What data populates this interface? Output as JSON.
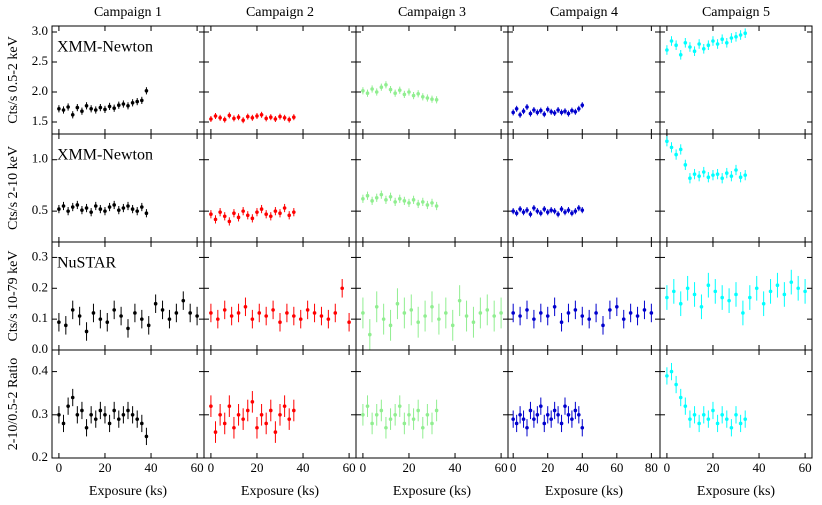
{
  "chart_data": [
    {
      "type": "scatter",
      "title": "Campaign 1",
      "ylabel": "Cts/s 0.5-2 keV",
      "annotation": "XMM-Newton",
      "color": "#000000",
      "error": 0.06,
      "x": [
        0,
        2,
        4,
        6,
        8,
        10,
        12,
        14,
        16,
        18,
        20,
        22,
        24,
        26,
        28,
        30,
        32,
        34,
        36,
        38
      ],
      "values": [
        1.72,
        1.7,
        1.75,
        1.62,
        1.74,
        1.68,
        1.77,
        1.72,
        1.7,
        1.74,
        1.71,
        1.76,
        1.73,
        1.78,
        1.8,
        1.77,
        1.82,
        1.84,
        1.86,
        2.02
      ],
      "xlim": [
        -3,
        63
      ],
      "ylim": [
        1.3,
        3.1
      ],
      "xticks": [
        0,
        20,
        40,
        60
      ],
      "yticks": [
        1.5,
        {
          "value": 2.0,
          "label": "2.0"
        },
        2.5,
        {
          "value": 3.0,
          "label": "3.0"
        }
      ]
    },
    {
      "type": "scatter",
      "title": "Campaign 2",
      "color": "#ff0000",
      "error": 0.05,
      "x": [
        0,
        2,
        4,
        6,
        8,
        10,
        12,
        14,
        16,
        18,
        20,
        22,
        24,
        26,
        28,
        30,
        32,
        34,
        36
      ],
      "values": [
        1.55,
        1.6,
        1.57,
        1.54,
        1.61,
        1.56,
        1.58,
        1.53,
        1.59,
        1.57,
        1.6,
        1.62,
        1.56,
        1.58,
        1.55,
        1.59,
        1.57,
        1.54,
        1.58
      ],
      "xlim": [
        -3,
        63
      ],
      "ylim": [
        1.3,
        3.1
      ],
      "xticks": [
        0,
        20,
        40,
        60
      ],
      "yticks": [
        1.5,
        2.0,
        2.5,
        3.0
      ]
    },
    {
      "type": "scatter",
      "title": "Campaign 3",
      "color": "#90ee90",
      "error": 0.06,
      "x": [
        0,
        2,
        4,
        6,
        8,
        10,
        12,
        14,
        16,
        18,
        20,
        22,
        24,
        26,
        28,
        30,
        32
      ],
      "values": [
        2.02,
        1.98,
        2.05,
        2.0,
        2.08,
        2.12,
        2.04,
        1.98,
        2.03,
        1.96,
        2.0,
        1.94,
        1.97,
        1.92,
        1.9,
        1.88,
        1.87
      ],
      "xlim": [
        -3,
        63
      ],
      "ylim": [
        1.3,
        3.1
      ],
      "xticks": [
        0,
        20,
        40,
        60
      ],
      "yticks": [
        1.5,
        2.0,
        2.5,
        3.0
      ]
    },
    {
      "type": "scatter",
      "title": "Campaign 4",
      "color": "#0000cd",
      "error": 0.05,
      "x": [
        0,
        2,
        4,
        6,
        8,
        10,
        12,
        14,
        16,
        18,
        20,
        22,
        24,
        26,
        28,
        30,
        32,
        34,
        36,
        38,
        40
      ],
      "values": [
        1.66,
        1.72,
        1.62,
        1.68,
        1.75,
        1.64,
        1.7,
        1.66,
        1.69,
        1.63,
        1.71,
        1.67,
        1.65,
        1.7,
        1.66,
        1.68,
        1.64,
        1.69,
        1.67,
        1.72,
        1.78
      ],
      "xlim": [
        -3,
        85
      ],
      "ylim": [
        1.3,
        3.1
      ],
      "xticks": [
        0,
        20,
        40,
        60,
        80
      ],
      "yticks": [
        1.5,
        2.0,
        2.5,
        3.0
      ]
    },
    {
      "type": "scatter",
      "title": "Campaign 5",
      "color": "#00ffff",
      "error": 0.08,
      "x": [
        0,
        2,
        4,
        6,
        8,
        10,
        12,
        14,
        16,
        18,
        20,
        22,
        24,
        26,
        28,
        30,
        32,
        34
      ],
      "values": [
        2.7,
        2.85,
        2.78,
        2.62,
        2.82,
        2.75,
        2.68,
        2.8,
        2.72,
        2.78,
        2.85,
        2.8,
        2.88,
        2.82,
        2.9,
        2.92,
        2.95,
        2.98
      ],
      "xlim": [
        -3,
        63
      ],
      "ylim": [
        1.3,
        3.1
      ],
      "xticks": [
        0,
        20,
        40,
        60
      ],
      "yticks": [
        1.5,
        2.0,
        2.5,
        3.0
      ]
    },
    {
      "type": "scatter",
      "ylabel": "Cts/s 2-10 keV",
      "annotation": "XMM-Newton",
      "color": "#000000",
      "error": 0.04,
      "x": [
        0,
        2,
        4,
        6,
        8,
        10,
        12,
        14,
        16,
        18,
        20,
        22,
        24,
        26,
        28,
        30,
        32,
        34,
        36,
        38
      ],
      "values": [
        0.52,
        0.55,
        0.5,
        0.54,
        0.56,
        0.51,
        0.53,
        0.49,
        0.55,
        0.52,
        0.5,
        0.54,
        0.56,
        0.51,
        0.53,
        0.55,
        0.52,
        0.5,
        0.54,
        0.48
      ],
      "xlim": [
        -3,
        63
      ],
      "ylim": [
        0.2,
        1.25
      ],
      "xticks": [
        0,
        20,
        40,
        60
      ],
      "yticks": [
        0.5,
        {
          "value": 1,
          "label": "1.0"
        }
      ]
    },
    {
      "type": "scatter",
      "color": "#ff0000",
      "error": 0.04,
      "x": [
        0,
        2,
        4,
        6,
        8,
        10,
        12,
        14,
        16,
        18,
        20,
        22,
        24,
        26,
        28,
        30,
        32,
        34,
        36
      ],
      "values": [
        0.47,
        0.42,
        0.49,
        0.45,
        0.4,
        0.48,
        0.44,
        0.5,
        0.46,
        0.43,
        0.49,
        0.52,
        0.47,
        0.45,
        0.5,
        0.48,
        0.53,
        0.46,
        0.49
      ],
      "xlim": [
        -3,
        63
      ],
      "ylim": [
        0.2,
        1.25
      ],
      "xticks": [
        0,
        20,
        40,
        60
      ],
      "yticks": [
        0.5,
        1
      ]
    },
    {
      "type": "scatter",
      "color": "#90ee90",
      "error": 0.04,
      "x": [
        0,
        2,
        4,
        6,
        8,
        10,
        12,
        14,
        16,
        18,
        20,
        22,
        24,
        26,
        28,
        30,
        32
      ],
      "values": [
        0.62,
        0.65,
        0.6,
        0.63,
        0.66,
        0.61,
        0.64,
        0.59,
        0.62,
        0.6,
        0.58,
        0.61,
        0.57,
        0.59,
        0.56,
        0.58,
        0.55
      ],
      "xlim": [
        -3,
        63
      ],
      "ylim": [
        0.2,
        1.25
      ],
      "xticks": [
        0,
        20,
        40,
        60
      ],
      "yticks": [
        0.5,
        1
      ]
    },
    {
      "type": "scatter",
      "color": "#0000cd",
      "error": 0.03,
      "x": [
        0,
        2,
        4,
        6,
        8,
        10,
        12,
        14,
        16,
        18,
        20,
        22,
        24,
        26,
        28,
        30,
        32,
        34,
        36,
        38,
        40
      ],
      "values": [
        0.5,
        0.48,
        0.52,
        0.49,
        0.51,
        0.47,
        0.53,
        0.5,
        0.48,
        0.52,
        0.49,
        0.51,
        0.5,
        0.47,
        0.52,
        0.49,
        0.51,
        0.48,
        0.5,
        0.53,
        0.51
      ],
      "xlim": [
        -3,
        85
      ],
      "ylim": [
        0.2,
        1.25
      ],
      "xticks": [
        0,
        20,
        40,
        60,
        80
      ],
      "yticks": [
        0.5,
        1
      ]
    },
    {
      "type": "scatter",
      "color": "#00ffff",
      "error": 0.05,
      "x": [
        0,
        2,
        4,
        6,
        8,
        10,
        12,
        14,
        16,
        18,
        20,
        22,
        24,
        26,
        28,
        30,
        32,
        34
      ],
      "values": [
        1.18,
        1.12,
        1.05,
        1.1,
        0.95,
        0.82,
        0.86,
        0.84,
        0.88,
        0.83,
        0.85,
        0.86,
        0.82,
        0.87,
        0.84,
        0.9,
        0.83,
        0.85
      ],
      "xlim": [
        -3,
        63
      ],
      "ylim": [
        0.2,
        1.25
      ],
      "xticks": [
        0,
        20,
        40,
        60
      ],
      "yticks": [
        0.5,
        1
      ]
    },
    {
      "type": "scatter",
      "ylabel": "Cts/s 10-79 keV",
      "annotation": "NuSTAR",
      "color": "#000000",
      "error": 0.03,
      "x": [
        0,
        3,
        6,
        9,
        12,
        15,
        18,
        21,
        24,
        27,
        30,
        33,
        36,
        39,
        42,
        45,
        48,
        51,
        54,
        57,
        60
      ],
      "values": [
        0.09,
        0.08,
        0.13,
        0.11,
        0.06,
        0.12,
        0.1,
        0.09,
        0.13,
        0.11,
        0.07,
        0.12,
        0.1,
        0.08,
        0.15,
        0.13,
        0.1,
        0.12,
        0.16,
        0.12,
        0.11
      ],
      "xlim": [
        -3,
        63
      ],
      "ylim": [
        0,
        0.35
      ],
      "xticks": [
        0,
        20,
        40,
        60
      ],
      "yticks": [
        {
          "value": 0,
          "label": "0.0"
        },
        0.1,
        0.2,
        0.3
      ]
    },
    {
      "type": "scatter",
      "color": "#ff0000",
      "error": 0.03,
      "x": [
        0,
        3,
        6,
        9,
        12,
        15,
        18,
        21,
        24,
        27,
        30,
        33,
        36,
        39,
        42,
        45,
        48,
        51,
        54,
        57,
        60
      ],
      "values": [
        0.12,
        0.1,
        0.13,
        0.11,
        0.12,
        0.14,
        0.1,
        0.12,
        0.11,
        0.13,
        0.09,
        0.12,
        0.11,
        0.1,
        0.13,
        0.12,
        0.11,
        0.1,
        0.12,
        0.2,
        0.09
      ],
      "xlim": [
        -3,
        63
      ],
      "ylim": [
        0,
        0.35
      ],
      "xticks": [
        0,
        20,
        40,
        60
      ],
      "yticks": [
        0,
        0.1,
        0.2,
        0.3
      ]
    },
    {
      "type": "scatter",
      "color": "#90ee90",
      "error": 0.05,
      "x": [
        0,
        3,
        6,
        9,
        12,
        15,
        18,
        21,
        24,
        27,
        30,
        33,
        36,
        39,
        42,
        45,
        48,
        51,
        54,
        57,
        60
      ],
      "values": [
        0.12,
        0.05,
        0.14,
        0.1,
        0.08,
        0.15,
        0.12,
        0.13,
        0.09,
        0.11,
        0.14,
        0.1,
        0.12,
        0.08,
        0.16,
        0.11,
        0.09,
        0.12,
        0.13,
        0.11,
        0.12
      ],
      "xlim": [
        -3,
        63
      ],
      "ylim": [
        0,
        0.35
      ],
      "xticks": [
        0,
        20,
        40,
        60
      ],
      "yticks": [
        0,
        0.1,
        0.2,
        0.3
      ]
    },
    {
      "type": "scatter",
      "color": "#0000cd",
      "error": 0.03,
      "x": [
        0,
        4,
        8,
        12,
        16,
        20,
        24,
        28,
        32,
        36,
        40,
        44,
        48,
        52,
        56,
        60,
        64,
        68,
        72,
        76,
        80
      ],
      "values": [
        0.12,
        0.11,
        0.13,
        0.1,
        0.12,
        0.11,
        0.14,
        0.09,
        0.12,
        0.13,
        0.11,
        0.1,
        0.12,
        0.08,
        0.13,
        0.14,
        0.1,
        0.12,
        0.11,
        0.13,
        0.12
      ],
      "xlim": [
        -3,
        85
      ],
      "ylim": [
        0,
        0.35
      ],
      "xticks": [
        0,
        20,
        40,
        60,
        80
      ],
      "yticks": [
        0,
        0.1,
        0.2,
        0.3
      ]
    },
    {
      "type": "scatter",
      "color": "#00ffff",
      "error": 0.04,
      "x": [
        0,
        3,
        6,
        9,
        12,
        15,
        18,
        21,
        24,
        27,
        30,
        33,
        36,
        39,
        42,
        45,
        48,
        51,
        54,
        57,
        60
      ],
      "values": [
        0.17,
        0.19,
        0.15,
        0.2,
        0.18,
        0.14,
        0.21,
        0.19,
        0.17,
        0.16,
        0.18,
        0.12,
        0.17,
        0.2,
        0.15,
        0.19,
        0.21,
        0.18,
        0.22,
        0.2,
        0.19
      ],
      "xlim": [
        -3,
        63
      ],
      "ylim": [
        0,
        0.35
      ],
      "xticks": [
        0,
        20,
        40,
        60
      ],
      "yticks": [
        0,
        0.1,
        0.2,
        0.3
      ]
    },
    {
      "type": "scatter",
      "ylabel": "2-10/0.5-2 Ratio",
      "xlabel": "Exposure (ks)",
      "color": "#000000",
      "error": 0.02,
      "x": [
        0,
        2,
        4,
        6,
        8,
        10,
        12,
        14,
        16,
        18,
        20,
        22,
        24,
        26,
        28,
        30,
        32,
        34,
        36,
        38
      ],
      "values": [
        0.3,
        0.28,
        0.32,
        0.34,
        0.3,
        0.31,
        0.27,
        0.3,
        0.29,
        0.31,
        0.3,
        0.28,
        0.31,
        0.29,
        0.3,
        0.31,
        0.3,
        0.29,
        0.28,
        0.25
      ],
      "xlim": [
        -3,
        63
      ],
      "ylim": [
        0.2,
        0.45
      ],
      "xticks": [
        0,
        20,
        40,
        60
      ],
      "yticks": [
        0.2,
        0.3,
        0.4
      ]
    },
    {
      "type": "scatter",
      "xlabel": "Exposure (ks)",
      "color": "#ff0000",
      "error": 0.025,
      "x": [
        0,
        2,
        4,
        6,
        8,
        10,
        12,
        14,
        16,
        18,
        20,
        22,
        24,
        26,
        28,
        30,
        32,
        34,
        36
      ],
      "values": [
        0.32,
        0.26,
        0.3,
        0.28,
        0.32,
        0.27,
        0.3,
        0.29,
        0.31,
        0.33,
        0.27,
        0.3,
        0.28,
        0.31,
        0.26,
        0.3,
        0.32,
        0.29,
        0.31
      ],
      "xlim": [
        -3,
        63
      ],
      "ylim": [
        0.2,
        0.45
      ],
      "xticks": [
        0,
        20,
        40,
        60
      ],
      "yticks": [
        0.2,
        0.3,
        0.4
      ]
    },
    {
      "type": "scatter",
      "xlabel": "Exposure (ks)",
      "color": "#90ee90",
      "error": 0.025,
      "x": [
        0,
        2,
        4,
        6,
        8,
        10,
        12,
        14,
        16,
        18,
        20,
        22,
        24,
        26,
        28,
        30,
        32
      ],
      "values": [
        0.3,
        0.32,
        0.28,
        0.3,
        0.31,
        0.27,
        0.29,
        0.3,
        0.32,
        0.28,
        0.3,
        0.29,
        0.31,
        0.27,
        0.3,
        0.28,
        0.31
      ],
      "xlim": [
        -3,
        63
      ],
      "ylim": [
        0.2,
        0.45
      ],
      "xticks": [
        0,
        20,
        40,
        60
      ],
      "yticks": [
        0.2,
        0.3,
        0.4
      ]
    },
    {
      "type": "scatter",
      "xlabel": "Exposure (ks)",
      "color": "#0000cd",
      "error": 0.02,
      "x": [
        0,
        2,
        4,
        6,
        8,
        10,
        12,
        14,
        16,
        18,
        20,
        22,
        24,
        26,
        28,
        30,
        32,
        34,
        36,
        38,
        40
      ],
      "values": [
        0.29,
        0.28,
        0.3,
        0.29,
        0.27,
        0.31,
        0.29,
        0.3,
        0.32,
        0.28,
        0.3,
        0.29,
        0.31,
        0.3,
        0.28,
        0.32,
        0.3,
        0.29,
        0.31,
        0.3,
        0.27
      ],
      "xlim": [
        -3,
        85
      ],
      "ylim": [
        0.2,
        0.45
      ],
      "xticks": [
        0,
        20,
        40,
        60,
        80
      ],
      "yticks": [
        0.2,
        0.3,
        0.4
      ]
    },
    {
      "type": "scatter",
      "xlabel": "Exposure (ks)",
      "color": "#00ffff",
      "error": 0.02,
      "x": [
        0,
        2,
        4,
        6,
        8,
        10,
        12,
        14,
        16,
        18,
        20,
        22,
        24,
        26,
        28,
        30,
        32,
        34
      ],
      "values": [
        0.39,
        0.4,
        0.37,
        0.34,
        0.32,
        0.29,
        0.3,
        0.28,
        0.3,
        0.29,
        0.31,
        0.28,
        0.3,
        0.29,
        0.27,
        0.3,
        0.28,
        0.29
      ],
      "xlim": [
        -3,
        63
      ],
      "ylim": [
        0.2,
        0.45
      ],
      "xticks": [
        0,
        20,
        40,
        60
      ],
      "yticks": [
        0.2,
        0.3,
        0.4
      ]
    }
  ]
}
